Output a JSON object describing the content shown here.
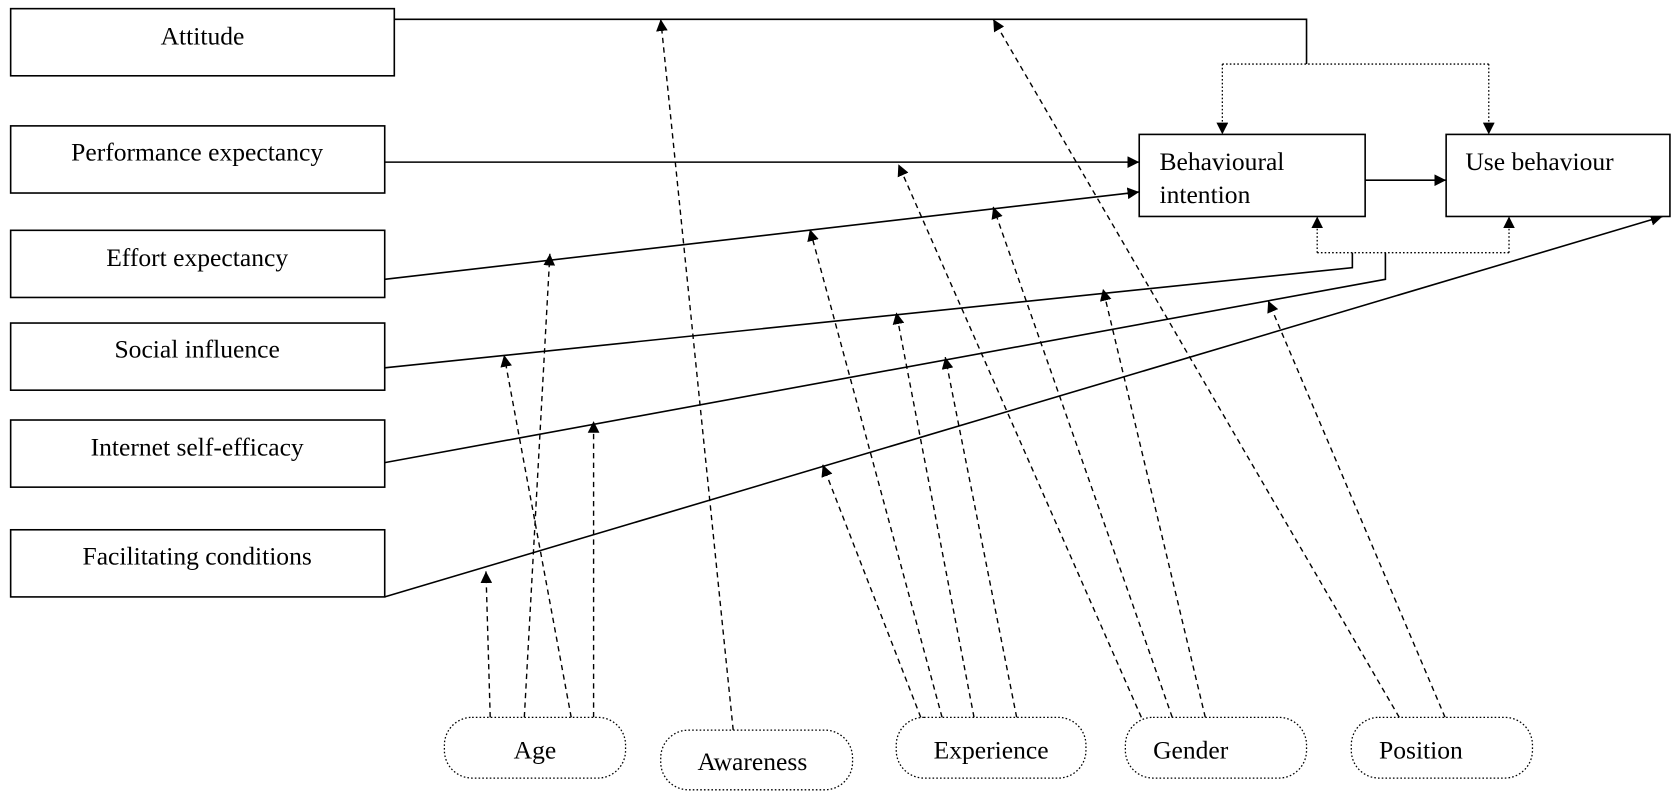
{
  "nodes": [
    {
      "label": "Attitude"
    },
    {
      "label": "Performance expectancy"
    },
    {
      "label": "Effort expectancy"
    },
    {
      "label": "Social influence"
    },
    {
      "label": "Internet self-efficacy"
    },
    {
      "label": "Facilitating conditions"
    },
    {
      "lines": [
        "Behavioural",
        "intention"
      ]
    },
    {
      "label": "Use behaviour"
    }
  ],
  "moderators": [
    {
      "label": "Age"
    },
    {
      "label": "Awareness"
    },
    {
      "label": "Experience"
    },
    {
      "label": "Gender"
    },
    {
      "label": "Position"
    }
  ]
}
